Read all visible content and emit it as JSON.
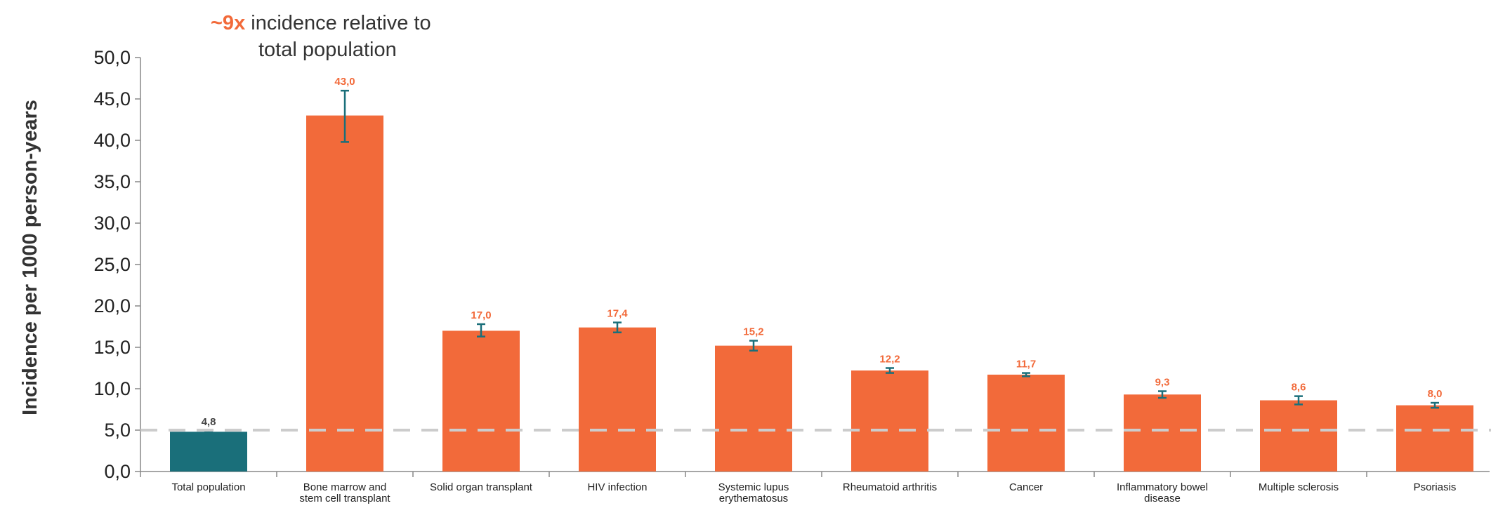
{
  "chart_data": {
    "type": "bar",
    "categories": [
      [
        "Total population"
      ],
      [
        "Bone marrow and",
        "stem cell transplant"
      ],
      [
        "Solid organ transplant"
      ],
      [
        "HIV infection"
      ],
      [
        "Systemic lupus",
        "erythematosus"
      ],
      [
        "Rheumatoid arthritis"
      ],
      [
        "Cancer"
      ],
      [
        "Inflammatory bowel",
        "disease"
      ],
      [
        "Multiple sclerosis"
      ],
      [
        "Psoriasis"
      ]
    ],
    "values": [
      4.8,
      43.0,
      17.0,
      17.4,
      15.2,
      12.2,
      11.7,
      9.3,
      8.6,
      8.0
    ],
    "value_labels": [
      "4,8",
      "43,0",
      "17,0",
      "17,4",
      "15,2",
      "12,2",
      "11,7",
      "9,3",
      "8,6",
      "8,0"
    ],
    "error_low": [
      4.7,
      39.8,
      16.3,
      16.8,
      14.6,
      11.9,
      11.5,
      8.9,
      8.1,
      7.7
    ],
    "error_high": [
      4.9,
      46.0,
      17.8,
      18.0,
      15.8,
      12.5,
      11.9,
      9.7,
      9.1,
      8.3
    ],
    "ylabel": "Incidence per 1000 person-years",
    "ylim": [
      0,
      50
    ],
    "yticks": [
      0,
      5,
      10,
      15,
      20,
      25,
      30,
      35,
      40,
      45,
      50
    ],
    "ytick_labels": [
      "0,0",
      "5,0",
      "10,0",
      "15,0",
      "20,0",
      "25,0",
      "30,0",
      "35,0",
      "40,0",
      "45,0",
      "50,0"
    ],
    "reference_line": 5.0,
    "annotation": {
      "highlight": "~9x",
      "line1": " incidence relative to",
      "line2": "total population"
    },
    "colors": {
      "baseline_bar": "#1a6f7a",
      "bar": "#f26a3a",
      "value_label_baseline": "#444444",
      "value_label": "#f26a3a",
      "error_bar": "#1a6f7a",
      "reference_line": "#cccccc",
      "axis": "#888888"
    }
  }
}
